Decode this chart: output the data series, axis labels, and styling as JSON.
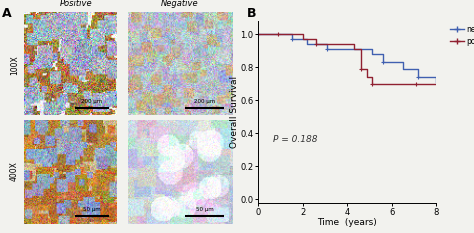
{
  "title_A": "A",
  "title_B": "B",
  "col_labels": [
    "Positive",
    "Negative"
  ],
  "row_labels": [
    "100X",
    "400X"
  ],
  "scale_labels_100": [
    "200 μm",
    "200 μm"
  ],
  "scale_labels_400": [
    "50 μm",
    "50 μm"
  ],
  "xlabel": "Time  (years)",
  "ylabel": "Overall Survival",
  "xlim": [
    0,
    8
  ],
  "ylim": [
    -0.02,
    1.08
  ],
  "xticks": [
    0,
    2,
    4,
    6,
    8
  ],
  "yticks": [
    0.0,
    0.2,
    0.4,
    0.6,
    0.8,
    1.0
  ],
  "p_value_text": "P = 0.188",
  "negative_color": "#4060b0",
  "positive_color": "#902030",
  "negative_x": [
    0,
    1.0,
    1.5,
    2.2,
    3.1,
    5.1,
    5.6,
    6.5,
    7.2,
    8.0
  ],
  "negative_y": [
    1.0,
    1.0,
    0.97,
    0.94,
    0.91,
    0.88,
    0.83,
    0.79,
    0.74,
    0.71
  ],
  "positive_x": [
    0,
    0.9,
    2.0,
    2.6,
    4.3,
    4.6,
    4.9,
    5.1,
    6.1,
    7.1,
    8.0
  ],
  "positive_y": [
    1.0,
    1.0,
    0.97,
    0.94,
    0.91,
    0.79,
    0.74,
    0.7,
    0.7,
    0.7,
    0.7
  ],
  "background_color": "#f2f2ee",
  "img_pos100_base": "#c8aa80",
  "img_neg100_base": "#b8c4cc",
  "img_pos400_base": "#c8a060",
  "img_neg400_base": "#c8d0d8"
}
